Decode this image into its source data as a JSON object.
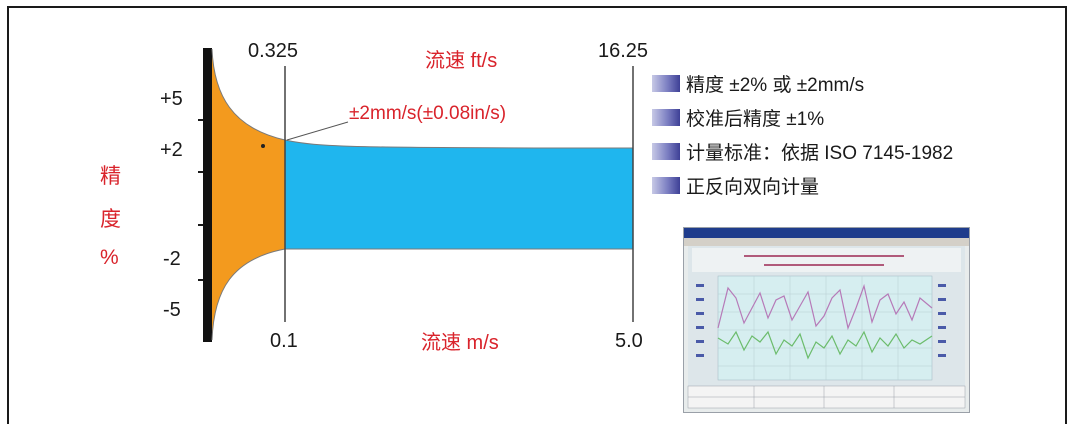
{
  "top_axis": {
    "title": "流速 ft/s",
    "min_label": "0.325",
    "max_label": "16.25"
  },
  "bottom_axis": {
    "title": "流速 m/s",
    "min_label": "0.1",
    "max_label": "5.0"
  },
  "left_axis": {
    "title_chars": [
      "精",
      "度",
      "%"
    ],
    "ticks": [
      "+5",
      "+2",
      "-2",
      "-5"
    ]
  },
  "annotation": "±2mm/s(±0.08in/s)",
  "legend": [
    "精度 ±2% 或 ±2mm/s",
    "校准后精度 ±1%",
    "计量标准：依据 ISO 7145-1982",
    "正反向双向计量"
  ],
  "colors": {
    "low_velocity_region": "#f39a1e",
    "high_velocity_region": "#1fb6ee",
    "label_red": "#d9232b",
    "legend_square": "#5a5cb0"
  }
}
